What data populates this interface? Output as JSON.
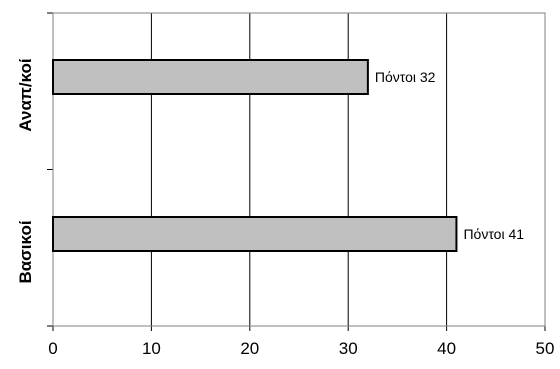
{
  "chart_data": {
    "type": "bar",
    "orientation": "horizontal",
    "categories": [
      "Αναπ/κοί",
      "Βασικοί"
    ],
    "values": [
      32,
      41
    ],
    "data_labels": [
      "Πόντοι 32",
      "Πόντοι 41"
    ],
    "xlim": [
      0,
      50
    ],
    "x_ticks": [
      "0",
      "10",
      "20",
      "30",
      "40",
      "50"
    ],
    "grid": "vertical",
    "legend": "none",
    "colors": {
      "bar_fill": "#c0c0c0",
      "bar_stroke": "#000000",
      "gridline": "#000000",
      "plot_border": "#808080"
    }
  }
}
